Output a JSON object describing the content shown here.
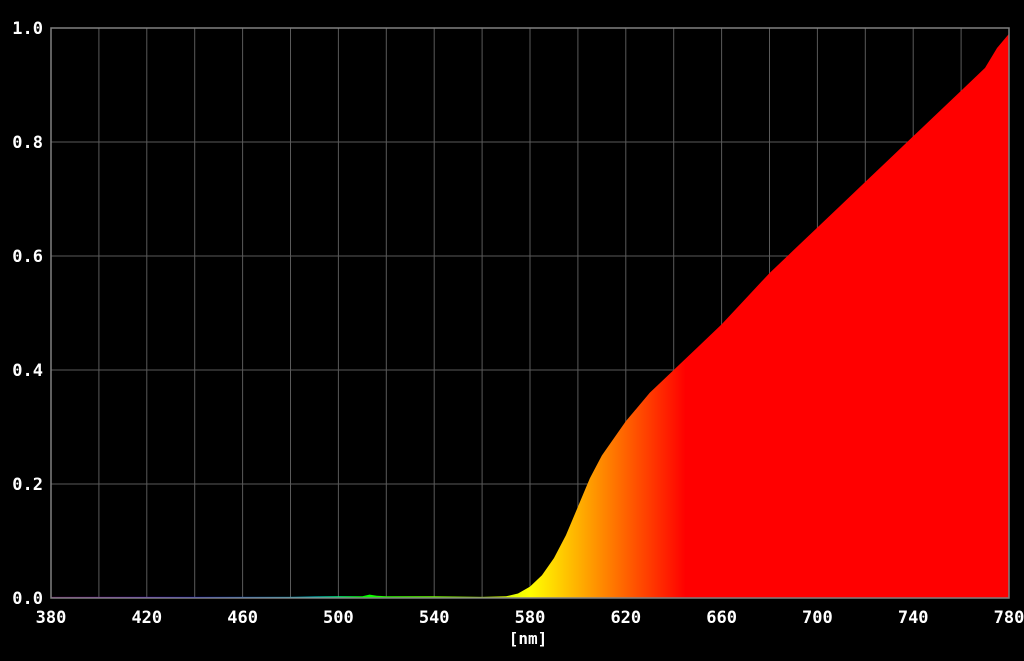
{
  "chart_data": {
    "type": "area",
    "title": "",
    "xlabel": "[nm]",
    "ylabel": "",
    "xlim": [
      380,
      780
    ],
    "ylim": [
      0,
      1.0
    ],
    "grid": true,
    "background_color": "#000000",
    "grid_color": "#5a5a5a",
    "axis_color": "#808080",
    "text_color": "#ffffff",
    "x_ticks": [
      380,
      420,
      460,
      500,
      540,
      580,
      620,
      660,
      700,
      740,
      780
    ],
    "x_tick_labels": [
      "380",
      "420",
      "460",
      "500",
      "540",
      "580",
      "620",
      "660",
      "700",
      "740",
      "780"
    ],
    "y_ticks": [
      0.0,
      0.2,
      0.4,
      0.6,
      0.8,
      1.0
    ],
    "y_tick_labels": [
      "0.0",
      "0.2",
      "0.4",
      "0.6",
      "0.8",
      "1.0"
    ],
    "fill": "spectral color of each wavelength",
    "series": [
      {
        "x": [
          380,
          400,
          420,
          440,
          460,
          480,
          500,
          510,
          513,
          516,
          520,
          540,
          560,
          570,
          575,
          580,
          585,
          590,
          595,
          600,
          605,
          610,
          620,
          630,
          640,
          650,
          660,
          670,
          680,
          690,
          700,
          710,
          720,
          730,
          740,
          750,
          760,
          770,
          775,
          780
        ],
        "values": [
          0.002,
          0.002,
          0.002,
          0.002,
          0.002,
          0.002,
          0.003,
          0.003,
          0.006,
          0.004,
          0.003,
          0.003,
          0.002,
          0.003,
          0.008,
          0.02,
          0.04,
          0.07,
          0.11,
          0.16,
          0.21,
          0.25,
          0.31,
          0.36,
          0.4,
          0.44,
          0.48,
          0.525,
          0.57,
          0.61,
          0.65,
          0.69,
          0.73,
          0.77,
          0.81,
          0.85,
          0.89,
          0.93,
          0.965,
          0.99
        ]
      }
    ]
  }
}
